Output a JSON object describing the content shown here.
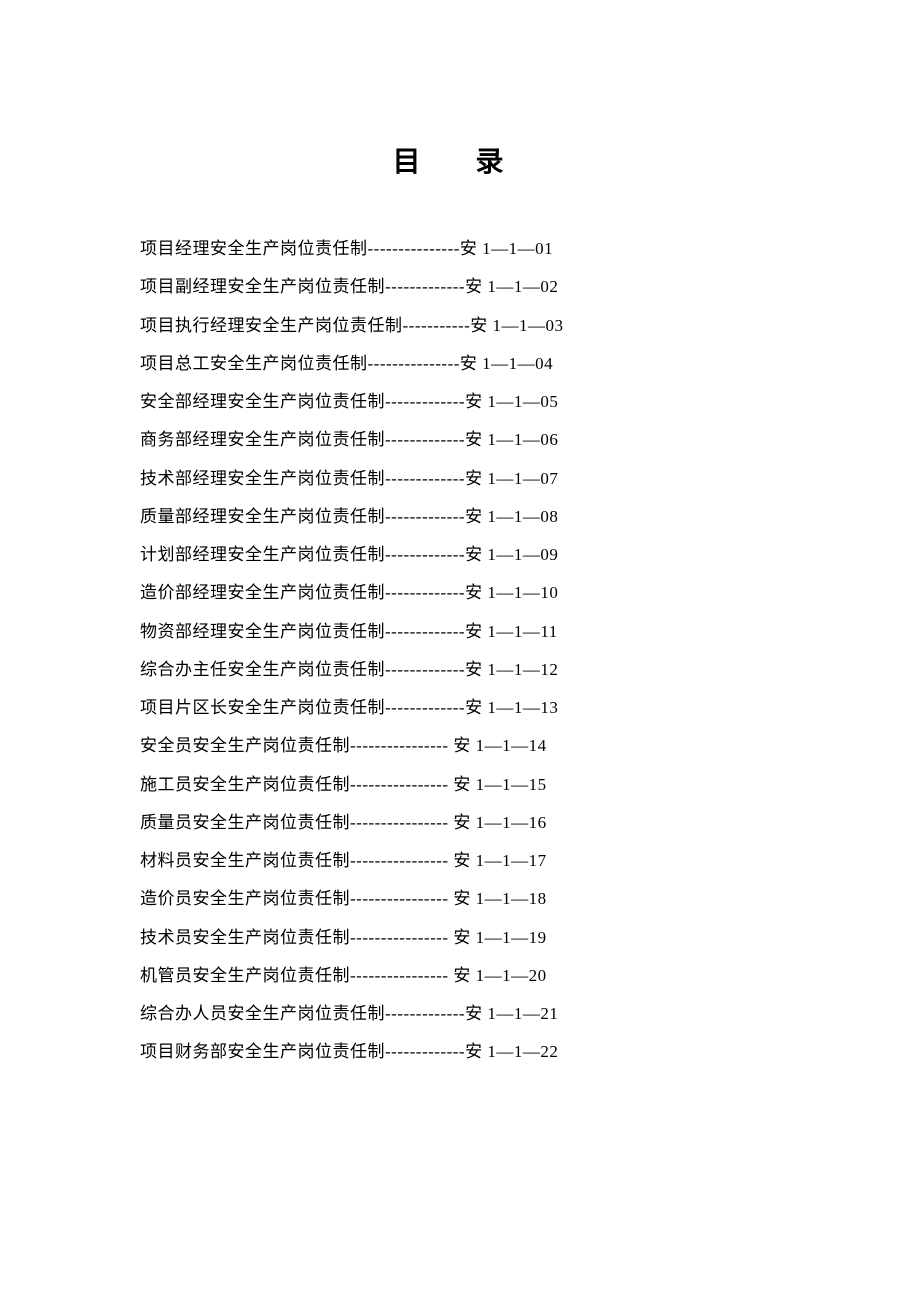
{
  "document": {
    "title": "目 录",
    "title_fontsize": 28,
    "entry_fontsize": 17,
    "text_color": "#000000",
    "background_color": "#ffffff",
    "line_height": 2.25,
    "entries": [
      {
        "text": "项目经理安全生产岗位责任制---------------安 1—1—01"
      },
      {
        "text": "项目副经理安全生产岗位责任制-------------安 1—1—02"
      },
      {
        "text": "项目执行经理安全生产岗位责任制-----------安 1—1—03"
      },
      {
        "text": "项目总工安全生产岗位责任制---------------安 1—1—04"
      },
      {
        "text": "安全部经理安全生产岗位责任制-------------安 1—1—05"
      },
      {
        "text": "商务部经理安全生产岗位责任制-------------安 1—1—06"
      },
      {
        "text": "技术部经理安全生产岗位责任制-------------安 1—1—07"
      },
      {
        "text": "质量部经理安全生产岗位责任制-------------安 1—1—08"
      },
      {
        "text": "计划部经理安全生产岗位责任制-------------安 1—1—09"
      },
      {
        "text": "造价部经理安全生产岗位责任制-------------安 1—1—10"
      },
      {
        "text": "物资部经理安全生产岗位责任制-------------安 1—1—11"
      },
      {
        "text": "综合办主任安全生产岗位责任制-------------安 1—1—12"
      },
      {
        "text": "项目片区长安全生产岗位责任制-------------安 1—1—13"
      },
      {
        "text": "安全员安全生产岗位责任制----------------  安 1—1—14"
      },
      {
        "text": "施工员安全生产岗位责任制----------------  安 1—1—15"
      },
      {
        "text": "质量员安全生产岗位责任制----------------  安 1—1—16"
      },
      {
        "text": "材料员安全生产岗位责任制----------------  安 1—1—17"
      },
      {
        "text": "造价员安全生产岗位责任制----------------  安 1—1—18"
      },
      {
        "text": "技术员安全生产岗位责任制----------------  安 1—1—19"
      },
      {
        "text": "机管员安全生产岗位责任制----------------  安 1—1—20"
      },
      {
        "text": "综合办人员安全生产岗位责任制-------------安 1—1—21"
      },
      {
        "text": "项目财务部安全生产岗位责任制-------------安 1—1—22"
      }
    ]
  }
}
